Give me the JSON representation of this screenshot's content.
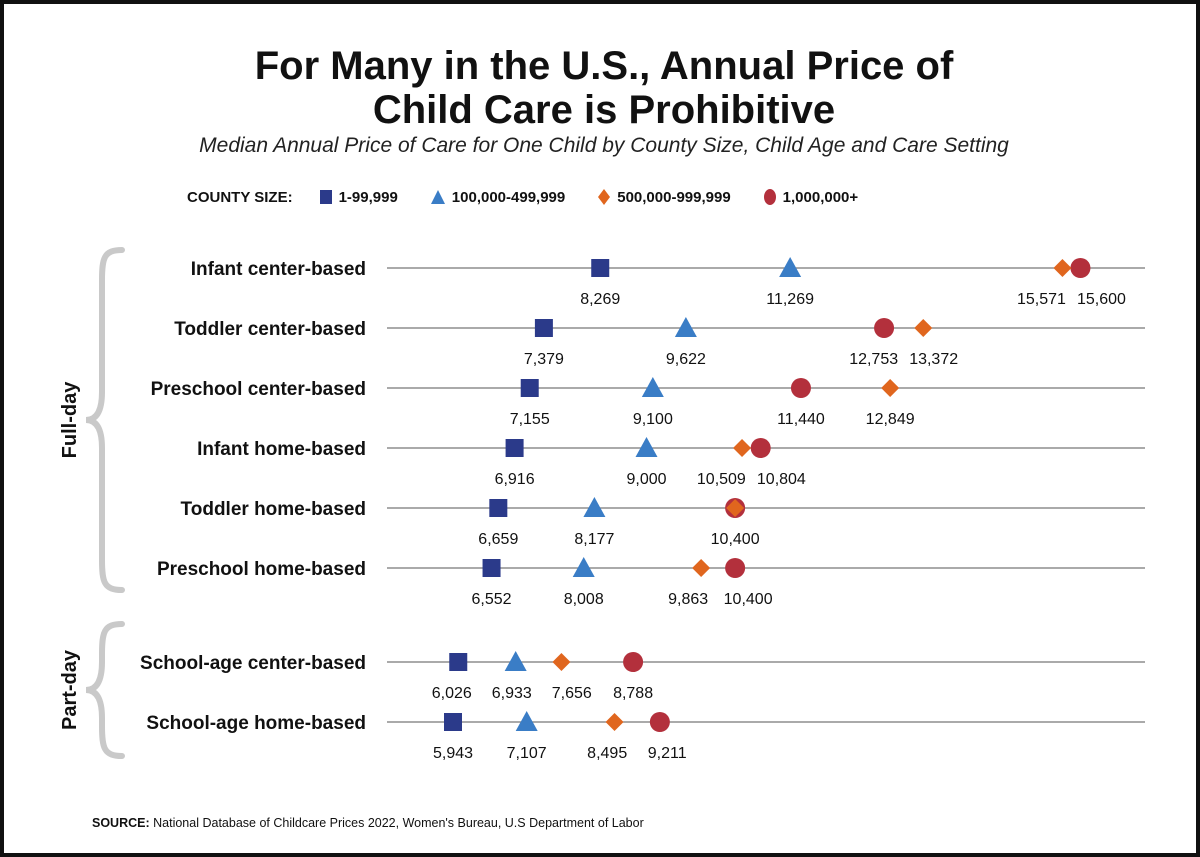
{
  "chart_data": {
    "type": "scatter",
    "title": "For Many in the U.S., Annual Price of Child Care is Prohibitive",
    "title_lines": [
      "For Many in the U.S., Annual Price of",
      "Child Care is Prohibitive"
    ],
    "subtitle": "Median Annual Price of Care for One Child by County Size, Child Age and Care Setting",
    "legend_title": "COUNTY SIZE:",
    "legend_placement": "top",
    "grid": false,
    "groups": [
      {
        "name": "Full-day",
        "categories": [
          "Infant center-based",
          "Toddler center-based",
          "Preschool center-based",
          "Infant home-based",
          "Toddler home-based",
          "Preschool home-based"
        ]
      },
      {
        "name": "Part-day",
        "categories": [
          "School-age center-based",
          "School-age home-based"
        ]
      }
    ],
    "categories": [
      "Infant center-based",
      "Toddler center-based",
      "Preschool center-based",
      "Infant home-based",
      "Toddler home-based",
      "Preschool home-based",
      "School-age center-based",
      "School-age home-based"
    ],
    "series": [
      {
        "name": "1-99,999",
        "marker": "square",
        "color": "#2b3a8a",
        "values": [
          8269,
          7379,
          7155,
          6916,
          6659,
          6552,
          6026,
          5943
        ]
      },
      {
        "name": "100,000-499,999",
        "marker": "triangle",
        "color": "#3a7dc6",
        "values": [
          11269,
          9622,
          9100,
          9000,
          8177,
          8008,
          6933,
          7107
        ]
      },
      {
        "name": "500,000-999,999",
        "marker": "diamond",
        "color": "#e0661e",
        "values": [
          15571,
          13372,
          12849,
          10509,
          10400,
          9863,
          7656,
          8495
        ]
      },
      {
        "name": "1,000,000+",
        "marker": "circle",
        "color": "#b3303c",
        "values": [
          15600,
          12753,
          11440,
          10804,
          10400,
          10400,
          8788,
          9211
        ]
      }
    ]
  },
  "source": {
    "label": "SOURCE:",
    "text": " National Database of Childcare Prices 2022, Women's Bureau, U.S Department of Labor"
  }
}
